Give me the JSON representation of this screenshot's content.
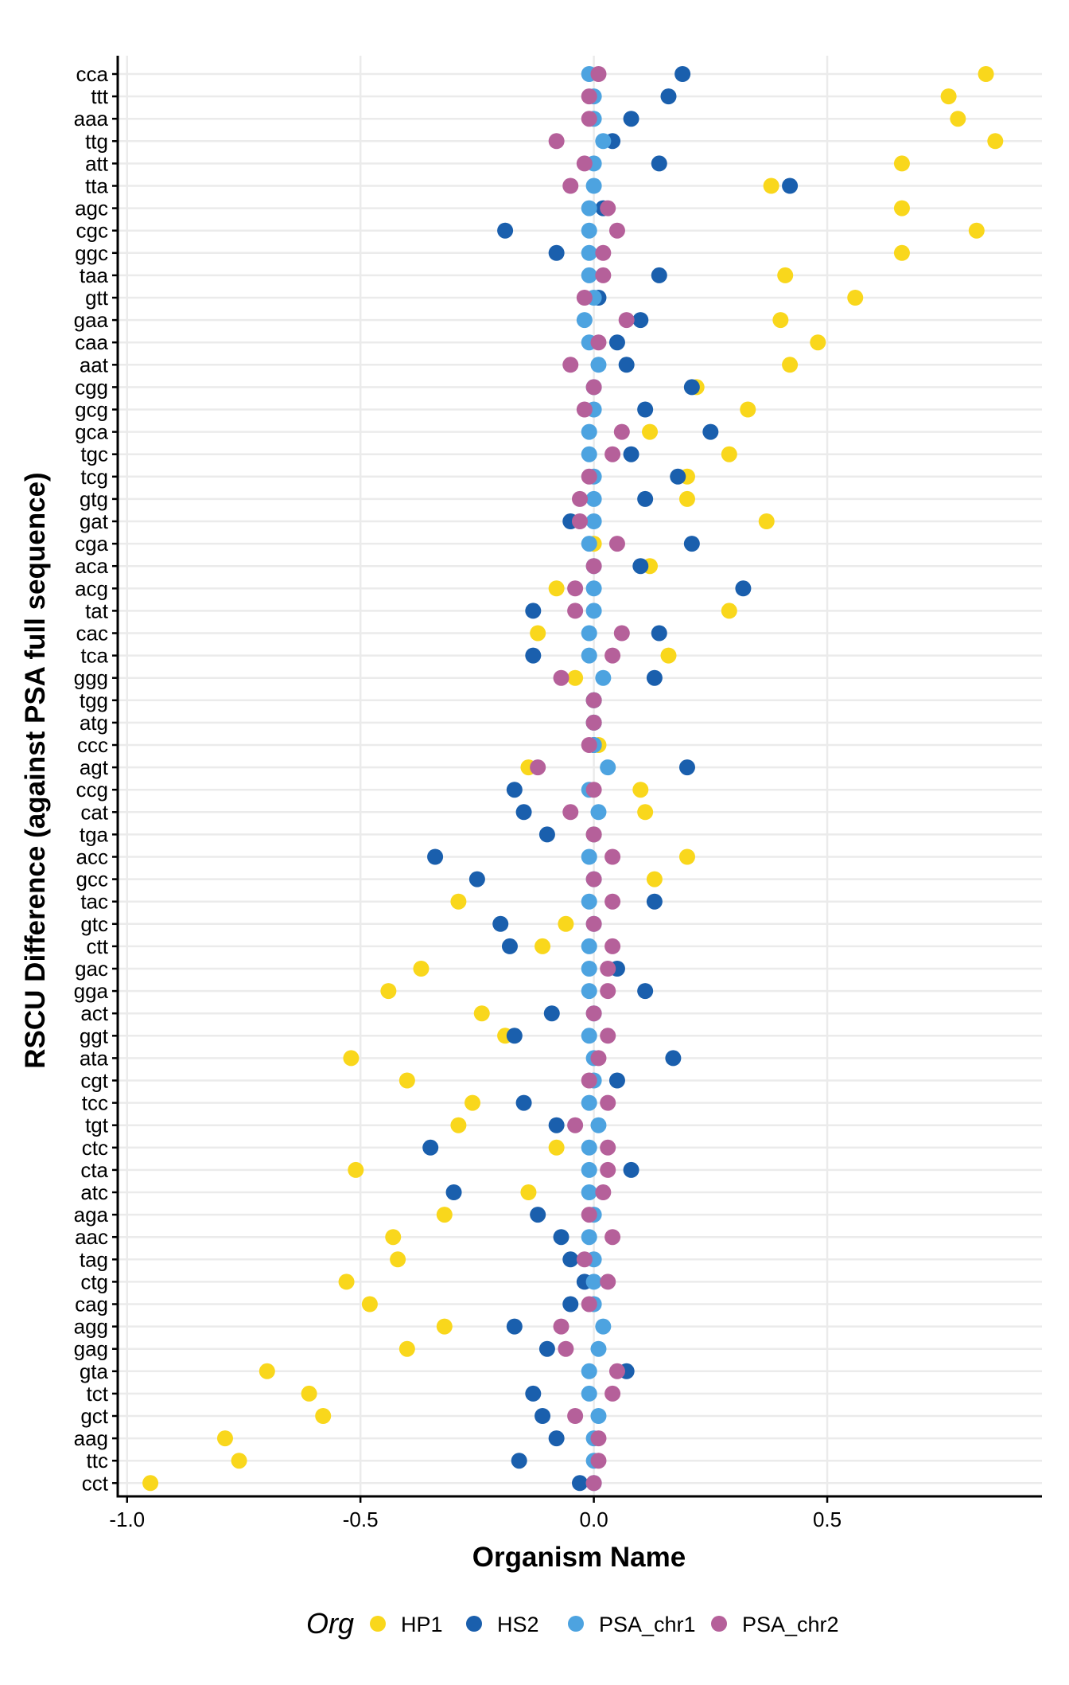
{
  "chart_data": {
    "type": "scatter",
    "title": "",
    "xlabel": "Organism Name",
    "ylabel": "RSCU Difference (against PSA full sequence)",
    "xlim": [
      -1.02,
      0.96
    ],
    "x_ticks": [
      -1.0,
      -0.5,
      0.0,
      0.5
    ],
    "x_tick_labels": [
      "-1.0",
      "-0.5",
      "0.0",
      "0.5"
    ],
    "grid": true,
    "legend": {
      "title": "Org",
      "position": "bottom"
    },
    "categories": [
      "cca",
      "ttt",
      "aaa",
      "ttg",
      "att",
      "tta",
      "agc",
      "cgc",
      "ggc",
      "taa",
      "gtt",
      "gaa",
      "caa",
      "aat",
      "cgg",
      "gcg",
      "gca",
      "tgc",
      "tcg",
      "gtg",
      "gat",
      "cga",
      "aca",
      "acg",
      "tat",
      "cac",
      "tca",
      "ggg",
      "tgg",
      "atg",
      "ccc",
      "agt",
      "ccg",
      "cat",
      "tga",
      "acc",
      "gcc",
      "tac",
      "gtc",
      "ctt",
      "gac",
      "gga",
      "act",
      "ggt",
      "ata",
      "cgt",
      "tcc",
      "tgt",
      "ctc",
      "cta",
      "atc",
      "aga",
      "aac",
      "tag",
      "ctg",
      "cag",
      "agg",
      "gag",
      "gta",
      "tct",
      "gct",
      "aag",
      "ttc",
      "cct"
    ],
    "series": [
      {
        "name": "HP1",
        "color": "#F9D71C",
        "values": [
          0.84,
          0.76,
          0.78,
          0.86,
          0.66,
          0.38,
          0.66,
          0.82,
          0.66,
          0.41,
          0.56,
          0.4,
          0.48,
          0.42,
          0.22,
          0.33,
          0.12,
          0.29,
          0.2,
          0.2,
          0.37,
          0.0,
          0.12,
          -0.08,
          0.29,
          -0.12,
          0.16,
          -0.04,
          0.0,
          0.0,
          0.01,
          -0.14,
          0.1,
          0.11,
          0.0,
          0.2,
          0.13,
          -0.29,
          -0.06,
          -0.11,
          -0.37,
          -0.44,
          -0.24,
          -0.19,
          -0.52,
          -0.4,
          -0.26,
          -0.29,
          -0.08,
          -0.51,
          -0.14,
          -0.32,
          -0.43,
          -0.42,
          -0.53,
          -0.48,
          -0.32,
          -0.4,
          -0.7,
          -0.61,
          -0.58,
          -0.79,
          -0.76,
          -0.95
        ]
      },
      {
        "name": "HS2",
        "color": "#1A5FAD",
        "values": [
          0.19,
          0.16,
          0.08,
          0.04,
          0.14,
          0.42,
          0.02,
          -0.19,
          -0.08,
          0.14,
          0.01,
          0.1,
          0.05,
          0.07,
          0.21,
          0.11,
          0.25,
          0.08,
          0.18,
          0.11,
          -0.05,
          0.21,
          0.1,
          0.32,
          -0.13,
          0.14,
          -0.13,
          0.13,
          0.0,
          0.0,
          0.0,
          0.2,
          -0.17,
          -0.15,
          -0.1,
          -0.34,
          -0.25,
          0.13,
          -0.2,
          -0.18,
          0.05,
          0.11,
          -0.09,
          -0.17,
          0.17,
          0.05,
          -0.15,
          -0.08,
          -0.35,
          0.08,
          -0.3,
          -0.12,
          -0.07,
          -0.05,
          -0.02,
          -0.05,
          -0.17,
          -0.1,
          0.07,
          -0.13,
          -0.11,
          -0.08,
          -0.16,
          -0.03
        ]
      },
      {
        "name": "PSA_chr1",
        "color": "#4DA3E0",
        "values": [
          -0.01,
          0.0,
          0.0,
          0.02,
          0.0,
          0.0,
          -0.01,
          -0.01,
          -0.01,
          -0.01,
          0.0,
          -0.02,
          -0.01,
          0.01,
          0.0,
          0.0,
          -0.01,
          -0.01,
          0.0,
          0.0,
          0.0,
          -0.01,
          0.0,
          0.0,
          0.0,
          -0.01,
          -0.01,
          0.02,
          0.0,
          0.0,
          0.0,
          0.03,
          -0.01,
          0.01,
          0.0,
          -0.01,
          0.0,
          -0.01,
          0.0,
          -0.01,
          -0.01,
          -0.01,
          0.0,
          -0.01,
          0.0,
          0.0,
          -0.01,
          0.01,
          -0.01,
          -0.01,
          -0.01,
          0.0,
          -0.01,
          0.0,
          0.0,
          0.0,
          0.02,
          0.01,
          -0.01,
          -0.01,
          0.01,
          0.0,
          0.0,
          0.0
        ]
      },
      {
        "name": "PSA_chr2",
        "color": "#B5609A",
        "values": [
          0.01,
          -0.01,
          -0.01,
          -0.08,
          -0.02,
          -0.05,
          0.03,
          0.05,
          0.02,
          0.02,
          -0.02,
          0.07,
          0.01,
          -0.05,
          0.0,
          -0.02,
          0.06,
          0.04,
          -0.01,
          -0.03,
          -0.03,
          0.05,
          0.0,
          -0.04,
          -0.04,
          0.06,
          0.04,
          -0.07,
          0.0,
          0.0,
          -0.01,
          -0.12,
          0.0,
          -0.05,
          0.0,
          0.04,
          0.0,
          0.04,
          0.0,
          0.04,
          0.03,
          0.03,
          0.0,
          0.03,
          0.01,
          -0.01,
          0.03,
          -0.04,
          0.03,
          0.03,
          0.02,
          -0.01,
          0.04,
          -0.02,
          0.03,
          -0.01,
          -0.07,
          -0.06,
          0.05,
          0.04,
          -0.04,
          0.01,
          0.01,
          0.0
        ]
      }
    ]
  }
}
